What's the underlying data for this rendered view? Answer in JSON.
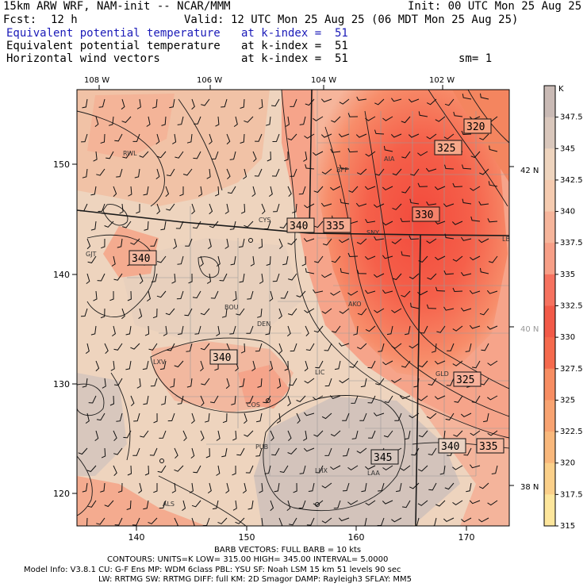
{
  "header": {
    "model": "15km ARW WRF, NAM-init -- NCAR/MMM",
    "init": "Init: 00 UTC Mon 25 Aug 25",
    "fcst_label": "Fcst:",
    "fcst_value": "12 h",
    "valid": "Valid: 12 UTC Mon 25 Aug 25 (06 MDT Mon 25 Aug 25)",
    "fields": [
      {
        "name": "Equivalent potential temperature",
        "level": "at k-index =  51",
        "color": "#1a1ab8"
      },
      {
        "name": "Equivalent potential temperature",
        "level": "at k-index =  51",
        "color": "#000000"
      },
      {
        "name": "Horizontal wind vectors",
        "level": "at k-index =  51",
        "color": "#000000"
      }
    ],
    "smoothing": "sm= 1"
  },
  "axes": {
    "top_lon": [
      "108 W",
      "106 W",
      "104 W",
      "102 W"
    ],
    "right_lat": [
      "42 N",
      "40 N",
      "38 N"
    ],
    "left_y": [
      "150",
      "140",
      "130",
      "120"
    ],
    "bottom_x": [
      "140",
      "150",
      "160",
      "170"
    ]
  },
  "colorbar": {
    "unit": "K",
    "labels": [
      "347.5",
      "345",
      "342.5",
      "340",
      "337.5",
      "335",
      "332.5",
      "330",
      "327.5",
      "325",
      "322.5",
      "320",
      "317.5",
      "315"
    ],
    "colors": [
      "#c9bab5",
      "#d9c7bc",
      "#eed4be",
      "#f5cbb0",
      "#f6b59b",
      "#f79f87",
      "#f6725f",
      "#f25a48",
      "#f56a4d",
      "#f78d62",
      "#f8a371",
      "#f9b87c",
      "#fbd08a",
      "#fde69c"
    ]
  },
  "contour_labels": [
    "320",
    "325",
    "330",
    "340",
    "335",
    "340",
    "340",
    "325",
    "345",
    "340",
    "335"
  ],
  "stations": [
    "RWL",
    "BFF",
    "AIA",
    "CYS",
    "SNY",
    "LBF",
    "BOU",
    "DEN",
    "AKO",
    "LXV",
    "LIC",
    "GLD",
    "COS",
    "PUB",
    "LHX",
    "LAA",
    "ALS",
    "GJT"
  ],
  "footer": {
    "barb": "BARB VECTORS:  FULL BARB = 10 kts",
    "contours": "CONTOURS:  UNITS=K    LOW=  315.00          HIGH=  345.00         INTERVAL=    5.0000",
    "model_info": "Model Info: V3.8.1     CU: G-F Ens  MP: WDM 6class  PBL: YSU      SF: Noah LSM    15 km    51 levels    90 sec",
    "physics": "LW: RRTMG   SW: RRTMG  DIFF: full    KM: 2D Smagor DAMP: Rayleigh3  SFLAY: MM5"
  }
}
